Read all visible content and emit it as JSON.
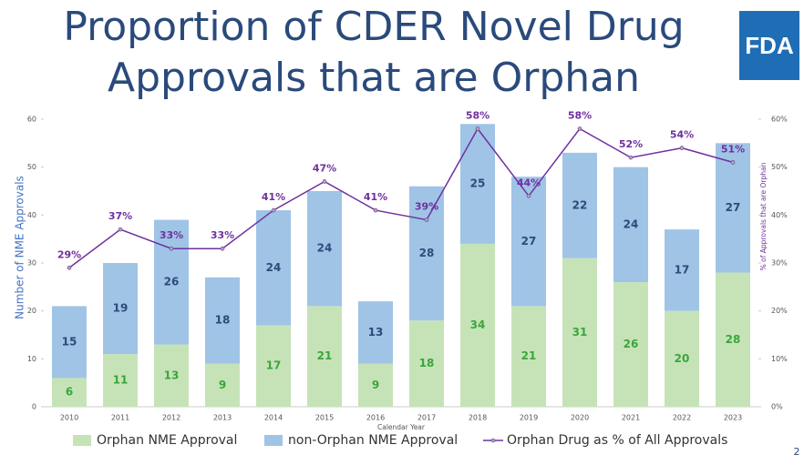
{
  "title": "Proportion of CDER Novel Drug Approvals that are Orphan",
  "logo": "FDA",
  "page_number": "2",
  "chart_data": {
    "type": "bar",
    "x_label": "Calendar Year",
    "y_label": "Number of NME Approvals",
    "y2_label": "% of Approvals that are Orphan",
    "categories": [
      "2010",
      "2011",
      "2012",
      "2013",
      "2014",
      "2015",
      "2016",
      "2017",
      "2018",
      "2019",
      "2020",
      "2021",
      "2022",
      "2023"
    ],
    "stacked": true,
    "ylim": [
      0,
      60
    ],
    "yticks": [
      0,
      10,
      20,
      30,
      40,
      50,
      60
    ],
    "y2lim": [
      0,
      60
    ],
    "y2ticks": [
      {
        "value": 0,
        "label": "0%"
      },
      {
        "value": 10,
        "label": "10%"
      },
      {
        "value": 20,
        "label": "20%"
      },
      {
        "value": 30,
        "label": "30%"
      },
      {
        "value": 40,
        "label": "40%"
      },
      {
        "value": 50,
        "label": "50%"
      },
      {
        "value": 60,
        "label": "60%"
      }
    ],
    "series": [
      {
        "name": "Orphan NME Approval",
        "color": "#c6e3b8",
        "label_color": "#3aa63a",
        "values": [
          6,
          11,
          13,
          9,
          17,
          21,
          9,
          18,
          34,
          21,
          31,
          26,
          20,
          28
        ]
      },
      {
        "name": "non-Orphan NME Approval",
        "color": "#9fc4e6",
        "label_color": "#2e4a7a",
        "values": [
          15,
          19,
          26,
          18,
          24,
          24,
          13,
          28,
          25,
          27,
          22,
          24,
          17,
          27
        ]
      },
      {
        "name": "Orphan Drug as % of All Approvals",
        "type": "line",
        "axis": "y2",
        "color": "#7030a0",
        "values": [
          29,
          37,
          33,
          33,
          41,
          47,
          41,
          39,
          58,
          44,
          58,
          52,
          54,
          51
        ],
        "value_labels": [
          "29%",
          "37%",
          "33%",
          "33%",
          "41%",
          "47%",
          "41%",
          "39%",
          "58%",
          "44%",
          "58%",
          "52%",
          "54%",
          "51%"
        ]
      }
    ]
  }
}
